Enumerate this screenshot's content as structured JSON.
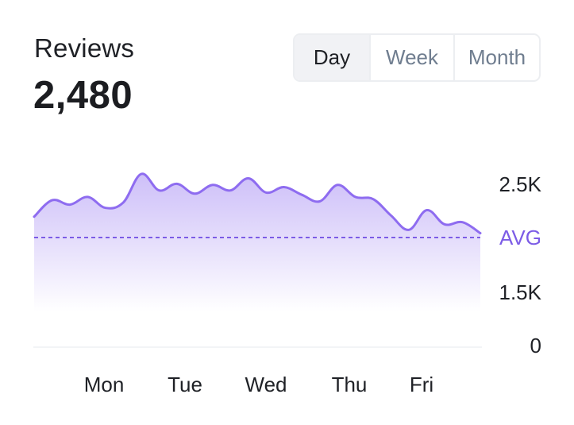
{
  "header": {
    "title": "Reviews",
    "total": "2,480"
  },
  "range_toggle": {
    "options": [
      "Day",
      "Week",
      "Month"
    ],
    "selected": "Day"
  },
  "colors": {
    "line": "#8e6cf0",
    "fill_top": "#cbbcf8",
    "avg_line": "#7c5ce6",
    "avg_label": "#7c5ce6"
  },
  "chart_data": {
    "type": "area",
    "title": "",
    "xlabel": "",
    "ylabel": "",
    "x_tick_labels": [
      "Mon",
      "Tue",
      "Wed",
      "Thu",
      "Fri"
    ],
    "y_tick_labels": [
      "2.5K",
      "AVG",
      "1.5K",
      "0"
    ],
    "y_ticks": [
      2500,
      2000,
      1500,
      0
    ],
    "ylim": [
      0,
      2700
    ],
    "average": 2000,
    "grid": false,
    "legend": "none",
    "series": [
      {
        "values": [
          2190,
          2340,
          2300,
          2370,
          2270,
          2320,
          2580,
          2430,
          2490,
          2400,
          2480,
          2430,
          2540,
          2410,
          2460,
          2390,
          2330,
          2480,
          2370,
          2350,
          2200,
          2070,
          2250,
          2120,
          2140,
          2040
        ]
      }
    ]
  }
}
